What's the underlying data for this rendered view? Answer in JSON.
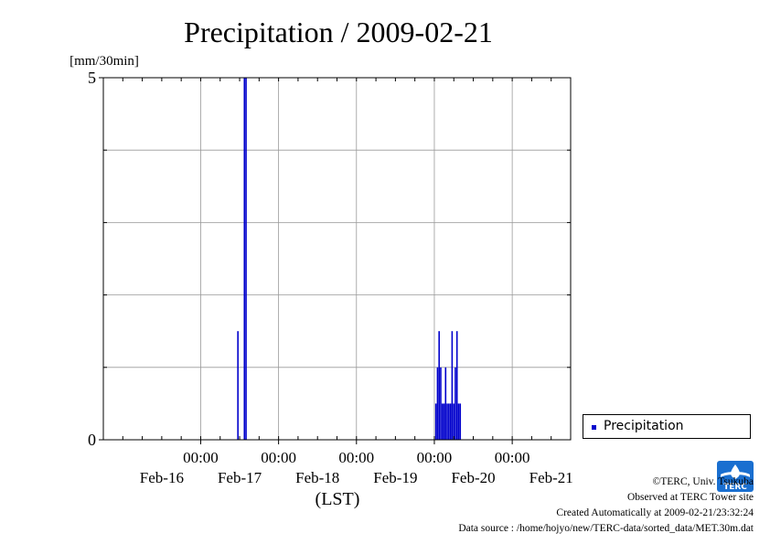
{
  "chart_data": {
    "type": "bar",
    "title": "Precipitation / 2009-02-21",
    "ylabel": "[mm/30min]",
    "xlabel": "(LST)",
    "ylim": [
      0,
      5
    ],
    "y_ticks": [
      "0",
      "5"
    ],
    "x_range": [
      "2009-02-15 18:00",
      "2009-02-21 18:00"
    ],
    "x_tick_times": [
      "00:00",
      "00:00",
      "00:00",
      "00:00",
      "00:00"
    ],
    "x_tick_positions": [
      "2009-02-17 00:00",
      "2009-02-18 00:00",
      "2009-02-19 00:00",
      "2009-02-20 00:00",
      "2009-02-21 00:00"
    ],
    "x_day_labels": [
      "Feb-16",
      "Feb-17",
      "Feb-18",
      "Feb-19",
      "Feb-20",
      "Feb-21"
    ],
    "x_day_positions": [
      "2009-02-16 12:00",
      "2009-02-17 12:00",
      "2009-02-18 12:00",
      "2009-02-19 12:00",
      "2009-02-20 12:00",
      "2009-02-21 12:00"
    ],
    "grid": true,
    "legend_position": "right",
    "series": [
      {
        "name": "Precipitation",
        "color": "#0000cc",
        "points": [
          {
            "t": "2009-02-17 11:30",
            "v": 1.5
          },
          {
            "t": "2009-02-17 13:30",
            "v": 5.0
          },
          {
            "t": "2009-02-17 14:00",
            "v": 5.0
          },
          {
            "t": "2009-02-20 00:30",
            "v": 0.5
          },
          {
            "t": "2009-02-20 01:00",
            "v": 1.0
          },
          {
            "t": "2009-02-20 01:30",
            "v": 1.5
          },
          {
            "t": "2009-02-20 02:00",
            "v": 1.0
          },
          {
            "t": "2009-02-20 02:30",
            "v": 0.5
          },
          {
            "t": "2009-02-20 03:00",
            "v": 0.5
          },
          {
            "t": "2009-02-20 03:30",
            "v": 1.0
          },
          {
            "t": "2009-02-20 04:00",
            "v": 0.5
          },
          {
            "t": "2009-02-20 04:30",
            "v": 0.5
          },
          {
            "t": "2009-02-20 05:00",
            "v": 0.5
          },
          {
            "t": "2009-02-20 05:30",
            "v": 1.5
          },
          {
            "t": "2009-02-20 06:00",
            "v": 0.5
          },
          {
            "t": "2009-02-20 06:30",
            "v": 1.0
          },
          {
            "t": "2009-02-20 07:00",
            "v": 1.5
          },
          {
            "t": "2009-02-20 07:30",
            "v": 0.5
          },
          {
            "t": "2009-02-20 08:00",
            "v": 0.5
          }
        ]
      }
    ]
  },
  "credits": {
    "copyright": "©TERC, Univ. Tsukuba",
    "observed": "Observed at TERC Tower site",
    "created": "Created Automatically at 2009-02-21/23:32:24",
    "source": "Data source : /home/hojyo/new/TERC-data/sorted_data/MET.30m.dat"
  },
  "logo": {
    "text": "TERC",
    "color": "#1a6fd0"
  },
  "legend": {
    "label": "Precipitation"
  }
}
